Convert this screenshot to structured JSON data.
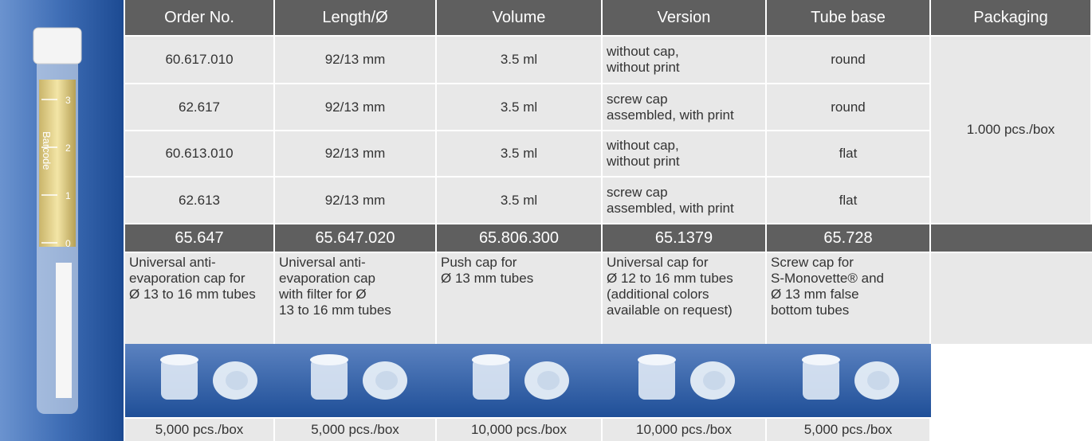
{
  "tube": {
    "marks": [
      "3",
      "2",
      "1",
      "0"
    ],
    "barcode": "Barcode"
  },
  "table": {
    "columns": [
      "Order No.",
      "Length/Ø",
      "Volume",
      "Version",
      "Tube base",
      "Packaging"
    ],
    "rows": [
      {
        "order": "60.617.010",
        "length": "92/13 mm",
        "volume": "3.5 ml",
        "version": [
          "without cap,",
          "without print"
        ],
        "base": "round"
      },
      {
        "order": "62.617",
        "length": "92/13 mm",
        "volume": "3.5 ml",
        "version": [
          "screw cap",
          "assembled, with print"
        ],
        "base": "round"
      },
      {
        "order": "60.613.010",
        "length": "92/13 mm",
        "volume": "3.5 ml",
        "version": [
          "without cap,",
          "without print"
        ],
        "base": "flat"
      },
      {
        "order": "62.613",
        "length": "92/13 mm",
        "volume": "3.5 ml",
        "version": [
          "screw cap",
          "assembled, with print"
        ],
        "base": "flat"
      }
    ],
    "packaging": "1.000 pcs./box"
  },
  "caps": [
    {
      "order": "65.647",
      "description": [
        "Universal anti-",
        "evaporation cap for",
        "Ø 13 to 16 mm tubes"
      ],
      "packaging": "5,000 pcs./box"
    },
    {
      "order": "65.647.020",
      "description": [
        "Universal anti-",
        "evaporation cap",
        "with filter for Ø",
        "13 to 16 mm tubes"
      ],
      "packaging": "5,000 pcs./box"
    },
    {
      "order": "65.806.300",
      "description": [
        "Push cap for",
        "Ø 13 mm tubes"
      ],
      "packaging": "10,000 pcs./box"
    },
    {
      "order": "65.1379",
      "description": [
        "Universal cap for",
        "Ø 12 to 16 mm tubes",
        "(additional colors",
        "available on request)"
      ],
      "packaging": "10,000 pcs./box"
    },
    {
      "order": "65.728",
      "description": [
        "Screw cap for",
        "S-Monovette® and",
        "Ø 13 mm false",
        "bottom tubes"
      ],
      "packaging": "5,000 pcs./box"
    }
  ]
}
